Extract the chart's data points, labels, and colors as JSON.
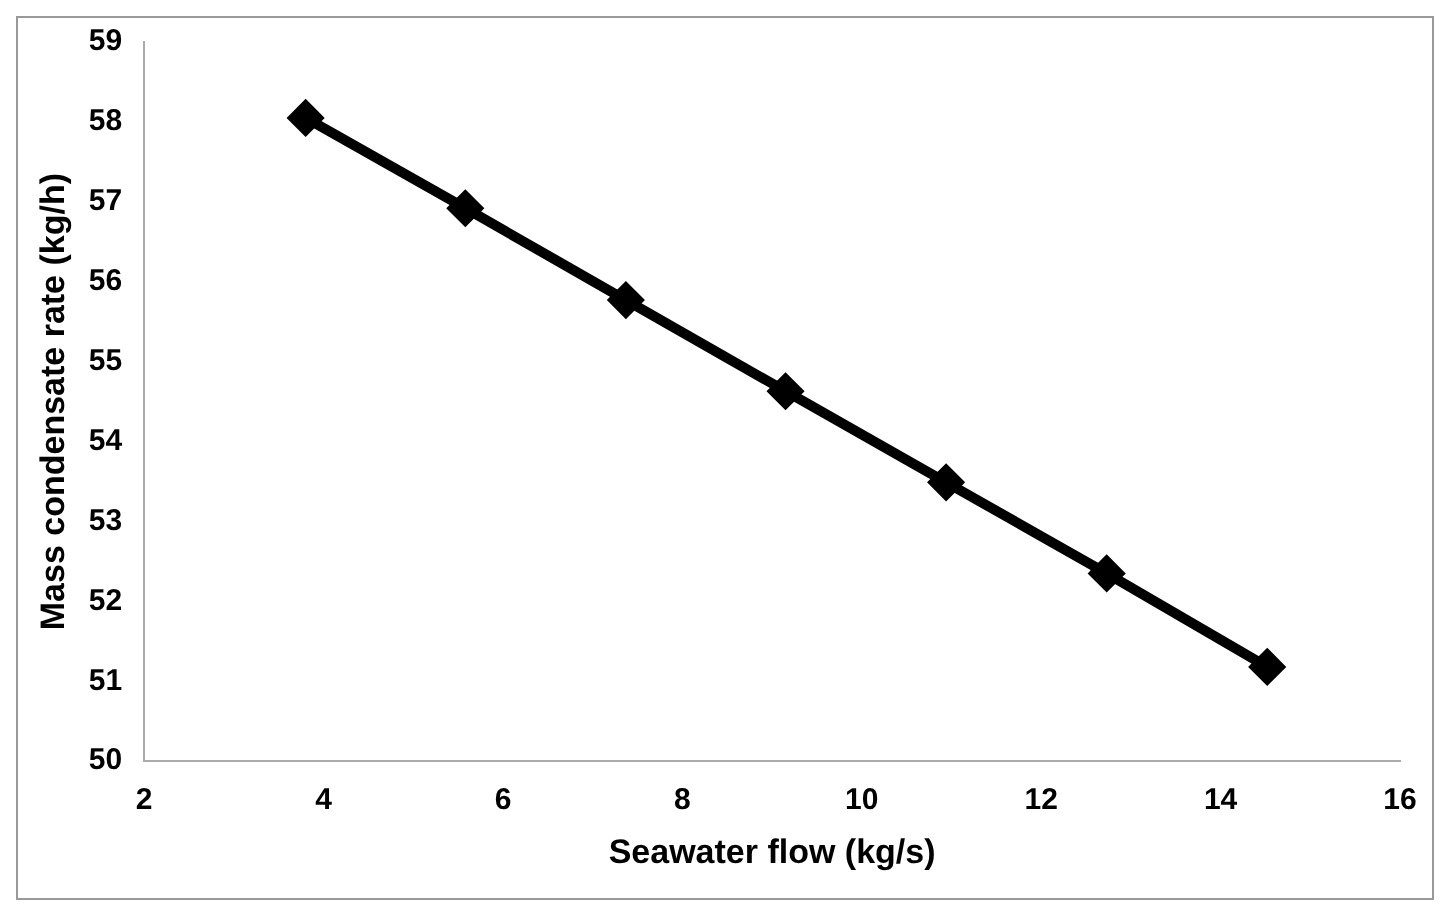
{
  "chart_data": {
    "type": "line",
    "xlabel": "Seawater flow (kg/s)",
    "ylabel": "Mass condensate rate (kg/h)",
    "x": [
      3.8,
      5.58,
      7.37,
      9.15,
      10.94,
      12.73,
      14.52
    ],
    "series": [
      {
        "color": "#000000",
        "values": [
          58.05,
          56.92,
          55.77,
          54.63,
          53.49,
          52.35,
          51.18
        ]
      }
    ],
    "xlim": [
      2,
      16
    ],
    "xticks": [
      2,
      4,
      6,
      8,
      10,
      12,
      14,
      16
    ],
    "ylim": [
      50,
      59
    ],
    "yticks": [
      50,
      51,
      52,
      53,
      54,
      55,
      56,
      57,
      58,
      59
    ],
    "grid": false,
    "legend": false,
    "marker": "diamond",
    "line_style": "solid"
  }
}
